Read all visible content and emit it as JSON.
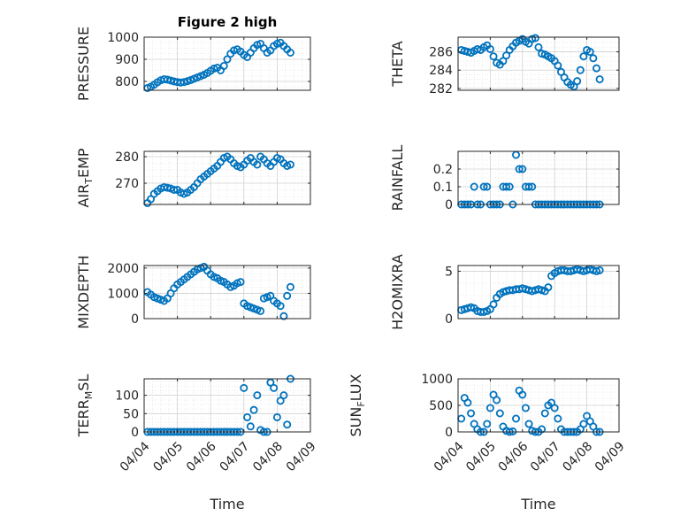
{
  "figure": {
    "background": "#ffffff",
    "marker_color": "#0072BD"
  },
  "chart_data": [
    {
      "type": "scatter",
      "title": "Figure 2 high",
      "ylabel": "PRESSURE",
      "ylim": [
        760,
        1000
      ],
      "yticks": [
        800,
        900,
        1000
      ],
      "ytick_labels": [
        "800",
        "900",
        "1000"
      ],
      "xticks": [
        "04/04",
        "04/05",
        "04/06",
        "04/07",
        "04/08",
        "04/09"
      ],
      "show_xtick_labels": false,
      "grid": true,
      "x_days": [
        0.1,
        0.2,
        0.3,
        0.4,
        0.5,
        0.6,
        0.7,
        0.8,
        0.9,
        1.0,
        1.1,
        1.2,
        1.3,
        1.4,
        1.5,
        1.6,
        1.7,
        1.8,
        1.9,
        2.0,
        2.1,
        2.2,
        2.3,
        2.4,
        2.5,
        2.6,
        2.7,
        2.8,
        2.9,
        3.0,
        3.1,
        3.2,
        3.3,
        3.4,
        3.5,
        3.6,
        3.7,
        3.8,
        3.9,
        4.0,
        4.1,
        4.2,
        4.3,
        4.4
      ],
      "values": [
        770,
        776,
        785,
        796,
        805,
        810,
        808,
        804,
        800,
        797,
        795,
        797,
        801,
        806,
        812,
        818,
        824,
        830,
        838,
        848,
        858,
        862,
        850,
        870,
        900,
        925,
        940,
        945,
        935,
        920,
        910,
        930,
        950,
        965,
        970,
        950,
        930,
        940,
        960,
        970,
        975,
        960,
        945,
        930
      ]
    },
    {
      "type": "scatter",
      "ylabel": "THETA",
      "ylim": [
        281.8,
        287.6
      ],
      "yticks": [
        282,
        284,
        286
      ],
      "ytick_labels": [
        "282",
        "284",
        "286"
      ],
      "xticks": [
        "04/04",
        "04/05",
        "04/06",
        "04/07",
        "04/08",
        "04/09"
      ],
      "show_xtick_labels": false,
      "grid": true,
      "x_days": [
        0.1,
        0.2,
        0.3,
        0.4,
        0.5,
        0.6,
        0.7,
        0.8,
        0.9,
        1.0,
        1.1,
        1.2,
        1.3,
        1.4,
        1.5,
        1.6,
        1.7,
        1.8,
        1.9,
        2.0,
        2.1,
        2.2,
        2.3,
        2.4,
        2.5,
        2.6,
        2.7,
        2.8,
        2.9,
        3.0,
        3.1,
        3.2,
        3.3,
        3.4,
        3.5,
        3.6,
        3.7,
        3.8,
        3.9,
        4.0,
        4.1,
        4.2,
        4.3,
        4.4
      ],
      "values": [
        286.2,
        286.1,
        286.0,
        285.9,
        286.1,
        286.3,
        286.2,
        286.5,
        286.7,
        286.3,
        285.5,
        284.8,
        284.6,
        285.0,
        285.6,
        286.2,
        286.6,
        287.0,
        287.2,
        287.4,
        287.1,
        286.9,
        287.4,
        287.5,
        286.5,
        285.8,
        285.7,
        285.5,
        285.3,
        285.0,
        284.5,
        283.8,
        283.2,
        282.7,
        282.4,
        282.2,
        282.8,
        284.0,
        285.5,
        286.2,
        286.0,
        285.3,
        284.2,
        283.0
      ]
    },
    {
      "type": "scatter",
      "ylabel": "AIR_TEMP",
      "ylim": [
        262,
        282
      ],
      "yticks": [
        270,
        280
      ],
      "ytick_labels": [
        "270",
        "280"
      ],
      "xticks": [
        "04/04",
        "04/05",
        "04/06",
        "04/07",
        "04/08",
        "04/09"
      ],
      "show_xtick_labels": false,
      "grid": true,
      "x_days": [
        0.1,
        0.2,
        0.3,
        0.4,
        0.5,
        0.6,
        0.7,
        0.8,
        0.9,
        1.0,
        1.1,
        1.2,
        1.3,
        1.4,
        1.5,
        1.6,
        1.7,
        1.8,
        1.9,
        2.0,
        2.1,
        2.2,
        2.3,
        2.4,
        2.5,
        2.6,
        2.7,
        2.8,
        2.9,
        3.0,
        3.1,
        3.2,
        3.3,
        3.4,
        3.5,
        3.6,
        3.7,
        3.8,
        3.9,
        4.0,
        4.1,
        4.2,
        4.3,
        4.4
      ],
      "values": [
        262.5,
        264.0,
        266.0,
        267.0,
        268.0,
        268.5,
        268.3,
        268.0,
        267.5,
        267.5,
        266.5,
        266.0,
        266.5,
        267.5,
        268.5,
        270.0,
        271.5,
        272.5,
        273.5,
        274.5,
        275.5,
        276.5,
        278.0,
        279.5,
        280.0,
        279.0,
        277.5,
        276.5,
        276.0,
        277.0,
        278.5,
        279.5,
        278.0,
        277.0,
        280.0,
        279.0,
        277.5,
        276.5,
        278.0,
        279.5,
        279.0,
        277.5,
        276.5,
        277.0
      ]
    },
    {
      "type": "scatter",
      "ylabel": "RAINFALL",
      "ylim": [
        0,
        0.3
      ],
      "yticks": [
        0,
        0.1,
        0.2
      ],
      "ytick_labels": [
        "0",
        "0.1",
        "0.2"
      ],
      "xticks": [
        "04/04",
        "04/05",
        "04/06",
        "04/07",
        "04/08",
        "04/09"
      ],
      "show_xtick_labels": false,
      "grid": true,
      "x_days": [
        0.1,
        0.2,
        0.3,
        0.4,
        0.5,
        0.6,
        0.7,
        0.8,
        0.9,
        1.0,
        1.1,
        1.2,
        1.3,
        1.4,
        1.5,
        1.6,
        1.7,
        1.8,
        1.9,
        2.0,
        2.1,
        2.2,
        2.3,
        2.4,
        2.5,
        2.6,
        2.7,
        2.8,
        2.9,
        3.0,
        3.1,
        3.2,
        3.3,
        3.4,
        3.5,
        3.6,
        3.7,
        3.8,
        3.9,
        4.0,
        4.1,
        4.2,
        4.3,
        4.4
      ],
      "values": [
        0,
        0,
        0,
        0,
        0.1,
        0,
        0,
        0.1,
        0.1,
        0,
        0,
        0,
        0,
        0.1,
        0.1,
        0.1,
        0,
        0.28,
        0.2,
        0.2,
        0.1,
        0.1,
        0.1,
        0,
        0,
        0,
        0,
        0,
        0,
        0,
        0,
        0,
        0,
        0,
        0,
        0,
        0,
        0,
        0,
        0,
        0,
        0,
        0,
        0
      ]
    },
    {
      "type": "scatter",
      "ylabel": "MIXDEPTH",
      "ylim": [
        0,
        2100
      ],
      "yticks": [
        0,
        1000,
        2000
      ],
      "ytick_labels": [
        "0",
        "1000",
        "2000"
      ],
      "xticks": [
        "04/04",
        "04/05",
        "04/06",
        "04/07",
        "04/08",
        "04/09"
      ],
      "show_xtick_labels": false,
      "grid": true,
      "x_days": [
        0.1,
        0.2,
        0.3,
        0.4,
        0.5,
        0.6,
        0.7,
        0.8,
        0.9,
        1.0,
        1.1,
        1.2,
        1.3,
        1.4,
        1.5,
        1.6,
        1.7,
        1.8,
        1.9,
        2.0,
        2.1,
        2.2,
        2.3,
        2.4,
        2.5,
        2.6,
        2.7,
        2.8,
        2.9,
        3.0,
        3.1,
        3.2,
        3.3,
        3.4,
        3.5,
        3.6,
        3.7,
        3.8,
        3.9,
        4.0,
        4.1,
        4.2,
        4.3,
        4.4
      ],
      "values": [
        1050,
        950,
        850,
        800,
        750,
        700,
        800,
        1000,
        1200,
        1350,
        1450,
        1550,
        1650,
        1750,
        1850,
        1950,
        2000,
        2050,
        1900,
        1750,
        1650,
        1600,
        1500,
        1450,
        1350,
        1250,
        1300,
        1400,
        1450,
        600,
        500,
        450,
        400,
        350,
        300,
        800,
        850,
        900,
        700,
        600,
        500,
        100,
        900,
        1250
      ]
    },
    {
      "type": "scatter",
      "ylabel": "H2OMIXRA",
      "ylim": [
        0,
        5.6
      ],
      "yticks": [
        0,
        5
      ],
      "ytick_labels": [
        "0",
        "5"
      ],
      "xticks": [
        "04/04",
        "04/05",
        "04/06",
        "04/07",
        "04/08",
        "04/09"
      ],
      "show_xtick_labels": false,
      "grid": true,
      "x_days": [
        0.1,
        0.2,
        0.3,
        0.4,
        0.5,
        0.6,
        0.7,
        0.8,
        0.9,
        1.0,
        1.1,
        1.2,
        1.3,
        1.4,
        1.5,
        1.6,
        1.7,
        1.8,
        1.9,
        2.0,
        2.1,
        2.2,
        2.3,
        2.4,
        2.5,
        2.6,
        2.7,
        2.8,
        2.9,
        3.0,
        3.1,
        3.2,
        3.3,
        3.4,
        3.5,
        3.6,
        3.7,
        3.8,
        3.9,
        4.0,
        4.1,
        4.2,
        4.3,
        4.4
      ],
      "values": [
        0.9,
        1.0,
        1.1,
        1.2,
        1.1,
        0.8,
        0.7,
        0.7,
        0.8,
        1.0,
        1.5,
        2.2,
        2.6,
        2.8,
        2.9,
        3.0,
        3.0,
        3.1,
        3.1,
        3.2,
        3.1,
        3.0,
        2.9,
        3.0,
        3.1,
        3.0,
        2.9,
        3.3,
        4.5,
        4.8,
        5.0,
        5.1,
        5.1,
        5.0,
        5.0,
        5.1,
        5.2,
        5.1,
        5.0,
        5.1,
        5.2,
        5.1,
        5.0,
        5.1
      ]
    },
    {
      "type": "scatter",
      "ylabel": "TERR_MSL",
      "ylim": [
        0,
        145
      ],
      "yticks": [
        0,
        50,
        100
      ],
      "ytick_labels": [
        "0",
        "50",
        "100"
      ],
      "xlabel": "Time",
      "xticks": [
        "04/04",
        "04/05",
        "04/06",
        "04/07",
        "04/08",
        "04/09"
      ],
      "show_xtick_labels": true,
      "grid": true,
      "x_days": [
        0.1,
        0.2,
        0.3,
        0.4,
        0.5,
        0.6,
        0.7,
        0.8,
        0.9,
        1.0,
        1.1,
        1.2,
        1.3,
        1.4,
        1.5,
        1.6,
        1.7,
        1.8,
        1.9,
        2.0,
        2.1,
        2.2,
        2.3,
        2.4,
        2.5,
        2.6,
        2.7,
        2.8,
        2.9,
        3.0,
        3.1,
        3.2,
        3.3,
        3.4,
        3.5,
        3.6,
        3.7,
        3.8,
        3.9,
        4.0,
        4.1,
        4.2,
        4.3,
        4.4
      ],
      "values": [
        0,
        0,
        0,
        0,
        0,
        0,
        0,
        0,
        0,
        0,
        0,
        0,
        0,
        0,
        0,
        0,
        0,
        0,
        0,
        0,
        0,
        0,
        0,
        0,
        0,
        0,
        0,
        0,
        0,
        120,
        40,
        15,
        60,
        100,
        5,
        0,
        0,
        135,
        120,
        40,
        85,
        100,
        20,
        145
      ]
    },
    {
      "type": "scatter",
      "ylabel": "SUN_FLUX",
      "ylim": [
        0,
        1000
      ],
      "yticks": [
        0,
        500,
        1000
      ],
      "ytick_labels": [
        "0",
        "500",
        "1000"
      ],
      "xlabel": "Time",
      "xticks": [
        "04/04",
        "04/05",
        "04/06",
        "04/07",
        "04/08",
        "04/09"
      ],
      "show_xtick_labels": true,
      "grid": true,
      "x_days": [
        0.1,
        0.2,
        0.3,
        0.4,
        0.5,
        0.6,
        0.7,
        0.8,
        0.9,
        1.0,
        1.1,
        1.2,
        1.3,
        1.4,
        1.5,
        1.6,
        1.7,
        1.8,
        1.9,
        2.0,
        2.1,
        2.2,
        2.3,
        2.4,
        2.5,
        2.6,
        2.7,
        2.8,
        2.9,
        3.0,
        3.1,
        3.2,
        3.3,
        3.4,
        3.5,
        3.6,
        3.7,
        3.8,
        3.9,
        4.0,
        4.1,
        4.2,
        4.3,
        4.4
      ],
      "values": [
        250,
        640,
        550,
        350,
        150,
        50,
        0,
        0,
        150,
        450,
        700,
        600,
        350,
        100,
        20,
        0,
        10,
        250,
        780,
        700,
        450,
        150,
        20,
        0,
        0,
        50,
        350,
        500,
        550,
        450,
        250,
        50,
        0,
        0,
        0,
        0,
        0,
        50,
        150,
        300,
        200,
        100,
        0,
        0
      ]
    }
  ]
}
